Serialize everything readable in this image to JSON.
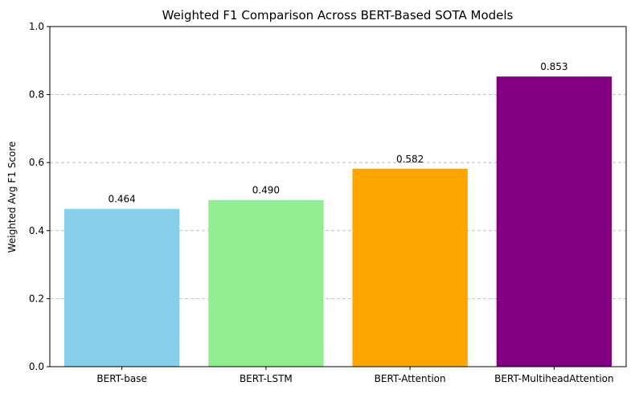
{
  "chart_data": {
    "type": "bar",
    "title": "Weighted F1 Comparison Across BERT-Based SOTA Models",
    "xlabel": "",
    "ylabel": "Weighted Avg F1 Score",
    "categories": [
      "BERT-base",
      "BERT-LSTM",
      "BERT-Attention",
      "BERT-MultiheadAttention"
    ],
    "values": [
      0.464,
      0.49,
      0.582,
      0.853
    ],
    "value_labels": [
      "0.464",
      "0.490",
      "0.582",
      "0.853"
    ],
    "colors": [
      "#87CEEB",
      "#90EE90",
      "#FFA500",
      "#800080"
    ],
    "ylim": [
      0,
      1.0
    ],
    "yticks": [
      0.0,
      0.2,
      0.4,
      0.6,
      0.8,
      1.0
    ],
    "ytick_labels": [
      "0.0",
      "0.2",
      "0.4",
      "0.6",
      "0.8",
      "1.0"
    ],
    "grid": "y-dashed",
    "legend": "none"
  }
}
